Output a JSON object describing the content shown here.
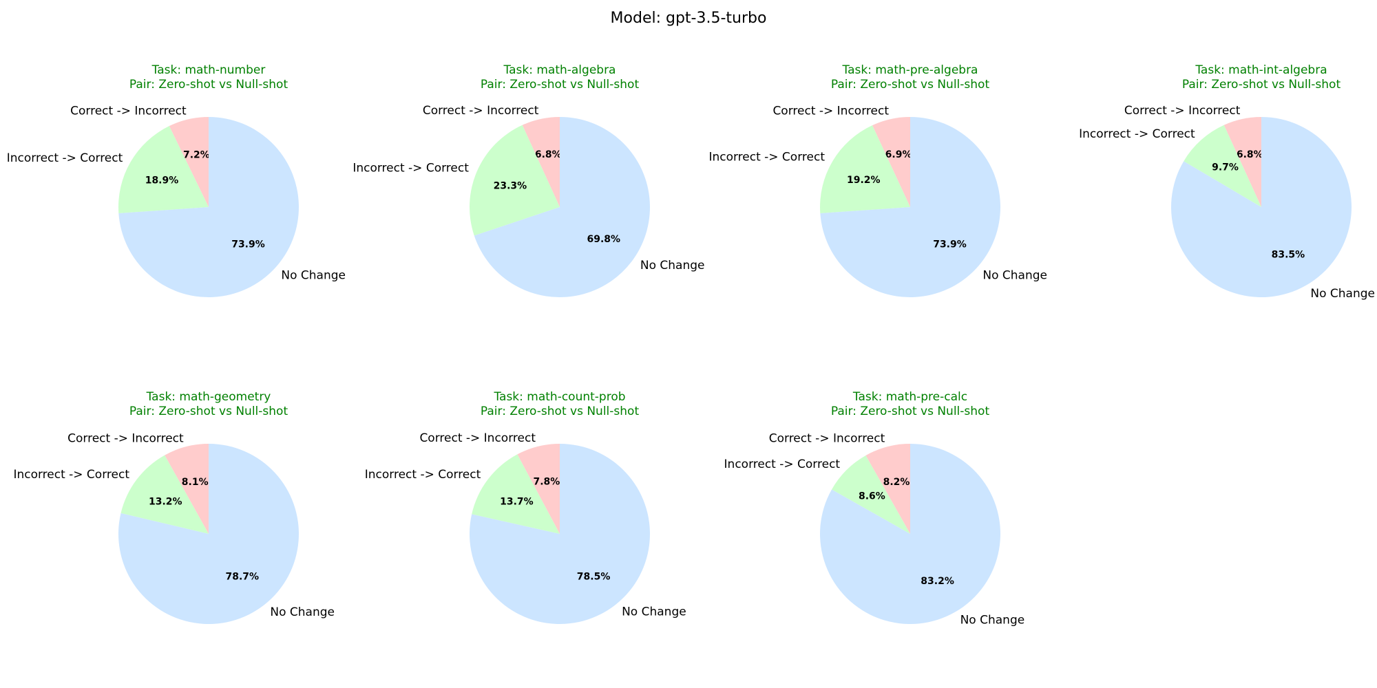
{
  "figure_title": "Model: gpt-3.5-turbo",
  "colors": {
    "correct_to_incorrect": "#ffcccc",
    "incorrect_to_correct": "#ccffcc",
    "no_change": "#cce5ff",
    "title": "#008000"
  },
  "chart_data": [
    {
      "type": "pie",
      "title": "Task: math-number",
      "subtitle": "Pair: Zero-shot vs Null-shot",
      "labels": [
        "Correct -> Incorrect",
        "Incorrect -> Correct",
        "No Change"
      ],
      "values": [
        7.2,
        18.9,
        73.9
      ],
      "value_labels": [
        "7.2%",
        "18.9%",
        "73.9%"
      ]
    },
    {
      "type": "pie",
      "title": "Task: math-algebra",
      "subtitle": "Pair: Zero-shot vs Null-shot",
      "labels": [
        "Correct -> Incorrect",
        "Incorrect -> Correct",
        "No Change"
      ],
      "values": [
        6.8,
        23.3,
        69.8
      ],
      "value_labels": [
        "6.8%",
        "23.3%",
        "69.8%"
      ]
    },
    {
      "type": "pie",
      "title": "Task: math-pre-algebra",
      "subtitle": "Pair: Zero-shot vs Null-shot",
      "labels": [
        "Correct -> Incorrect",
        "Incorrect -> Correct",
        "No Change"
      ],
      "values": [
        6.9,
        19.2,
        73.9
      ],
      "value_labels": [
        "6.9%",
        "19.2%",
        "73.9%"
      ]
    },
    {
      "type": "pie",
      "title": "Task: math-int-algebra",
      "subtitle": "Pair: Zero-shot vs Null-shot",
      "labels": [
        "Correct -> Incorrect",
        "Incorrect -> Correct",
        "No Change"
      ],
      "values": [
        6.8,
        9.7,
        83.5
      ],
      "value_labels": [
        "6.8%",
        "9.7%",
        "83.5%"
      ]
    },
    {
      "type": "pie",
      "title": "Task: math-geometry",
      "subtitle": "Pair: Zero-shot vs Null-shot",
      "labels": [
        "Correct -> Incorrect",
        "Incorrect -> Correct",
        "No Change"
      ],
      "values": [
        8.1,
        13.2,
        78.7
      ],
      "value_labels": [
        "8.1%",
        "13.2%",
        "78.7%"
      ]
    },
    {
      "type": "pie",
      "title": "Task: math-count-prob",
      "subtitle": "Pair: Zero-shot vs Null-shot",
      "labels": [
        "Correct -> Incorrect",
        "Incorrect -> Correct",
        "No Change"
      ],
      "values": [
        7.8,
        13.7,
        78.5
      ],
      "value_labels": [
        "7.8%",
        "13.7%",
        "78.5%"
      ]
    },
    {
      "type": "pie",
      "title": "Task: math-pre-calc",
      "subtitle": "Pair: Zero-shot vs Null-shot",
      "labels": [
        "Correct -> Incorrect",
        "Incorrect -> Correct",
        "No Change"
      ],
      "values": [
        8.2,
        8.6,
        83.2
      ],
      "value_labels": [
        "8.2%",
        "8.6%",
        "83.2%"
      ]
    }
  ]
}
